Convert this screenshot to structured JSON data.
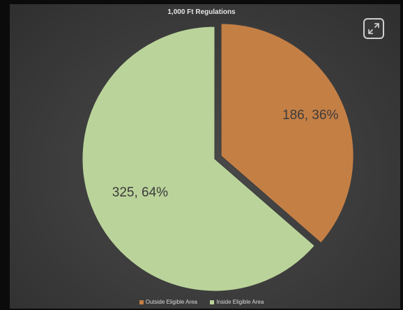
{
  "chart_data": {
    "type": "pie",
    "title": "1,000 Ft Regulations",
    "slices": [
      {
        "name": "Outside Eligible Area",
        "value": 186,
        "percent": 36,
        "label": "186, 36%",
        "color": "#c47f45"
      },
      {
        "name": "Inside Eligible Area",
        "value": 325,
        "percent": 64,
        "label": "325, 64%",
        "color": "#bad39a"
      }
    ],
    "legend_position": "bottom",
    "background_color": "#3c3c3c"
  },
  "toolbar": {
    "expand_icon": "expand-icon"
  }
}
